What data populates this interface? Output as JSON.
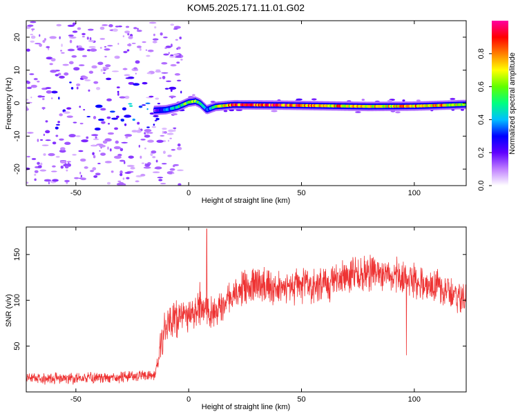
{
  "title": "KOM5.2025.171.11.01.G02",
  "chart_data": [
    {
      "type": "heatmap",
      "xlabel": "Height of straight line (km)",
      "ylabel": "Frequency (Hz)",
      "xlim": [
        -72,
        123
      ],
      "ylim": [
        -25,
        25
      ],
      "xticks": [
        -50,
        0,
        50,
        100
      ],
      "yticks": [
        -20,
        -10,
        0,
        10,
        20
      ],
      "xtick_labels": [
        "-50",
        "0",
        "50",
        "100"
      ],
      "ytick_labels": [
        "-20",
        "-10",
        "0",
        "10",
        "20"
      ],
      "colorbar": {
        "label": "Normalized spectral amplitude",
        "range": [
          0,
          1
        ],
        "ticks": [
          0.0,
          0.2,
          0.4,
          0.6,
          0.8
        ],
        "tick_labels": [
          "0.0",
          "0.2",
          "0.4",
          "0.6",
          "0.8"
        ],
        "colors": [
          "#ffffff",
          "#c080ff",
          "#6000ff",
          "#0000ff",
          "#00c0ff",
          "#00ff80",
          "#60ff00",
          "#ffff00",
          "#ff8000",
          "#ff0000",
          "#ff00a0"
        ]
      },
      "signal_track": {
        "x": [
          -15,
          -10,
          -5,
          0,
          3,
          5,
          8,
          12,
          20,
          40,
          60,
          80,
          100,
          110,
          123
        ],
        "freq": [
          -2.2,
          -2.0,
          -1.2,
          0.3,
          0.6,
          0.0,
          -2.0,
          -1.0,
          -0.5,
          -0.6,
          -0.8,
          -1.0,
          -0.9,
          -0.7,
          -0.4
        ],
        "amplitude": [
          0.15,
          0.35,
          0.45,
          0.6,
          0.65,
          0.5,
          0.3,
          0.6,
          0.85,
          0.9,
          0.8,
          0.7,
          0.75,
          0.8,
          0.6
        ]
      },
      "noise_region_x": [
        -72,
        -15
      ]
    },
    {
      "type": "line",
      "xlabel": "Height of straight line (km)",
      "ylabel": "SNR (v/v)",
      "xlim": [
        -72,
        123
      ],
      "ylim": [
        0,
        180
      ],
      "xticks": [
        -50,
        0,
        50,
        100
      ],
      "yticks": [
        50,
        100,
        150
      ],
      "xtick_labels": [
        "-50",
        "0",
        "50",
        "100"
      ],
      "ytick_labels": [
        "50",
        "100",
        "150"
      ],
      "line_color": "#ee3333",
      "envelope": {
        "x": [
          -72,
          -50,
          -30,
          -20,
          -15,
          -13,
          -10,
          -5,
          0,
          5,
          8,
          10,
          15,
          20,
          30,
          40,
          50,
          60,
          70,
          80,
          90,
          100,
          110,
          123
        ],
        "y": [
          15,
          15,
          16,
          18,
          18,
          40,
          75,
          80,
          85,
          90,
          95,
          85,
          95,
          110,
          118,
          115,
          115,
          118,
          125,
          130,
          128,
          122,
          115,
          100
        ]
      },
      "spikes": [
        {
          "x": 8.0,
          "y": 178
        },
        {
          "x": 5.0,
          "y": 120
        },
        {
          "x": 96.5,
          "y": 40
        }
      ]
    }
  ]
}
